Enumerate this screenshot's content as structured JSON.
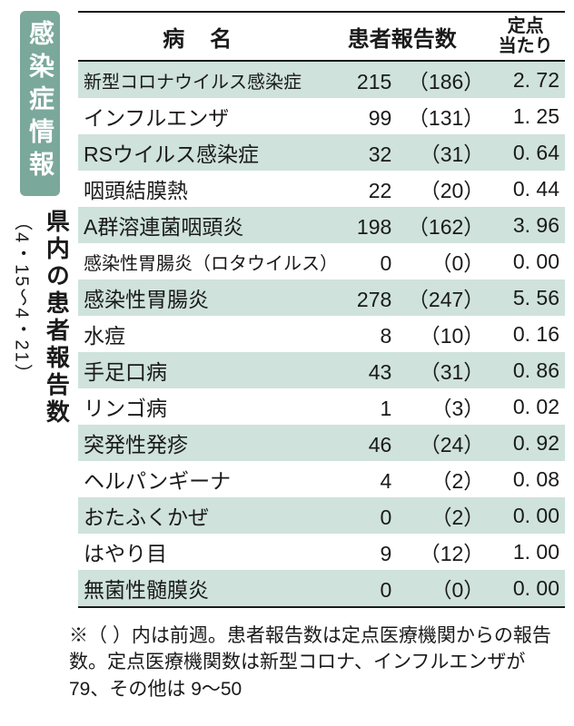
{
  "badge": "感染症情報",
  "vertical_title": "県内の患者報告数",
  "date_range": "（4・15〜4・21）",
  "headers": {
    "name": "病名",
    "count": "患者報告数",
    "rate_l1": "定点",
    "rate_l2": "当たり"
  },
  "rows": [
    {
      "name": "新型コロナウイルス感染症",
      "name_small": true,
      "count": "215",
      "prev": "（186）",
      "rate": "2. 72",
      "shade": true
    },
    {
      "name": "インフルエンザ",
      "count": "99",
      "prev": "（131）",
      "rate": "1. 25",
      "shade": false
    },
    {
      "name": "RSウイルス感染症",
      "count": "32",
      "prev": "（31）",
      "rate": "0. 64",
      "shade": true
    },
    {
      "name": "咽頭結膜熱",
      "count": "22",
      "prev": "（20）",
      "rate": "0. 44",
      "shade": false
    },
    {
      "name": "A群溶連菌咽頭炎",
      "count": "198",
      "prev": "（162）",
      "rate": "3. 96",
      "shade": true
    },
    {
      "name": "感染性胃腸炎（ロタウイルス）",
      "name_small": true,
      "count": "0",
      "prev": "（0）",
      "rate": "0. 00",
      "shade": false
    },
    {
      "name": "感染性胃腸炎",
      "count": "278",
      "prev": "（247）",
      "rate": "5. 56",
      "shade": true
    },
    {
      "name": "水痘",
      "count": "8",
      "prev": "（10）",
      "rate": "0. 16",
      "shade": false
    },
    {
      "name": "手足口病",
      "count": "43",
      "prev": "（31）",
      "rate": "0. 86",
      "shade": true
    },
    {
      "name": "リンゴ病",
      "count": "1",
      "prev": "（3）",
      "rate": "0. 02",
      "shade": false
    },
    {
      "name": "突発性発疹",
      "count": "46",
      "prev": "（24）",
      "rate": "0. 92",
      "shade": true
    },
    {
      "name": "ヘルパンギーナ",
      "count": "4",
      "prev": "（2）",
      "rate": "0. 08",
      "shade": false
    },
    {
      "name": "おたふくかぜ",
      "count": "0",
      "prev": "（2）",
      "rate": "0. 00",
      "shade": true
    },
    {
      "name": "はやり目",
      "count": "9",
      "prev": "（12）",
      "rate": "1. 00",
      "shade": false
    },
    {
      "name": "無菌性髄膜炎",
      "count": "0",
      "prev": "（0）",
      "rate": "0. 00",
      "shade": true
    }
  ],
  "footnote": "※（ ）内は前週。患者報告数は定点医療機関からの報告数。定点医療機関数は新型コロナ、インフルエンザが 79、その他は 9〜50",
  "style": {
    "badge_bg": "#7aa89a",
    "badge_fg": "#ffffff",
    "shade_bg": "#cfe2dc",
    "border": "#1a1a1a",
    "text": "#1a1a1a",
    "body_bg": "#ffffff",
    "name_fontsize": 23,
    "name_small_fontsize": 20,
    "header_fontsize": 24,
    "rate_header_fontsize": 20,
    "badge_fontsize": 28,
    "vtitle_fontsize": 26,
    "footnote_fontsize": 21,
    "col_widths": {
      "name": 250,
      "count": 175,
      "rate": 82
    }
  }
}
